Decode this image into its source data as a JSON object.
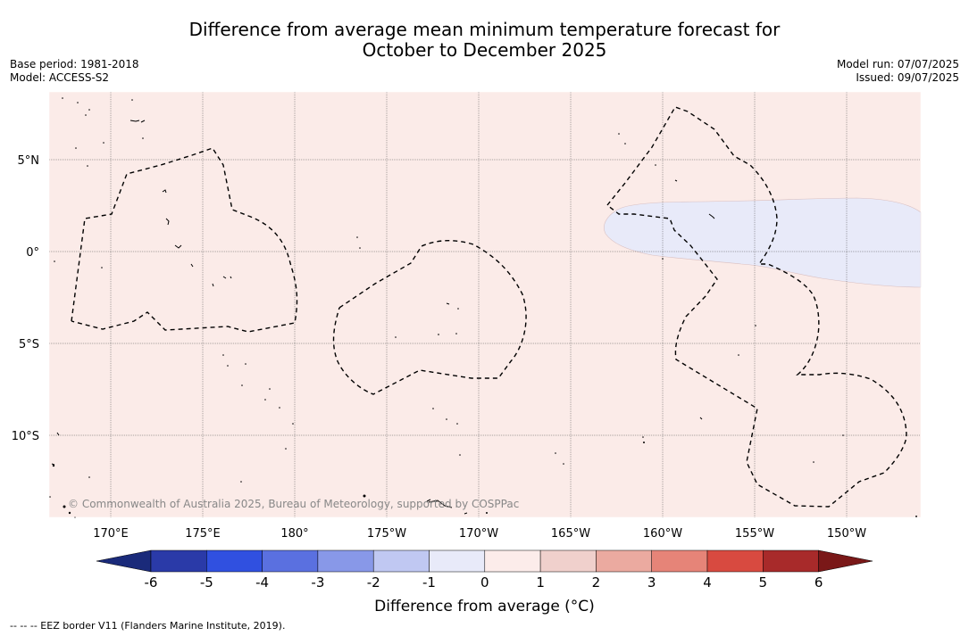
{
  "title_line1": "Difference from average mean minimum temperature forecast for",
  "title_line2": "October to December 2025",
  "base_period": "Base period: 1981-2018",
  "model": "Model: ACCESS-S2",
  "model_run": "Model run: 07/07/2025",
  "issued": "Issued: 09/07/2025",
  "copyright": "© Commonwealth of Australia 2025, Bureau of Meteorology, supported by COSPPac",
  "footnote": "--  --  -- EEZ border V11 (Flanders Marine Institute, 2019).",
  "colorbar_label": "Difference from average (°C)",
  "colors": {
    "background_anomaly": "#fbebe8",
    "negative_region": "#e8eaf9",
    "gridline": "#555555"
  },
  "chart_data": {
    "type": "heatmap",
    "dominant_category": "0 to 1",
    "secondary_region_category": "-1 to 0",
    "lon_ticks": [
      "170°E",
      "175°E",
      "180°",
      "175°W",
      "170°W",
      "165°W",
      "160°W",
      "155°W",
      "150°W"
    ],
    "lat_ticks": [
      "5°N",
      "0°",
      "5°S",
      "10°S"
    ],
    "colorbar": {
      "ticks": [
        "-6",
        "-5",
        "-4",
        "-3",
        "-2",
        "-1",
        "0",
        "1",
        "2",
        "3",
        "4",
        "5",
        "6"
      ],
      "bins": [
        "#1a2a7a",
        "#2a3aa8",
        "#3050e0",
        "#5a70e0",
        "#8898e8",
        "#c0c8f2",
        "#e8eaf9",
        "#fcecea",
        "#f0d0cc",
        "#ebaaa0",
        "#e68478",
        "#d84a40",
        "#a82a2a",
        "#7a1818"
      ]
    }
  }
}
